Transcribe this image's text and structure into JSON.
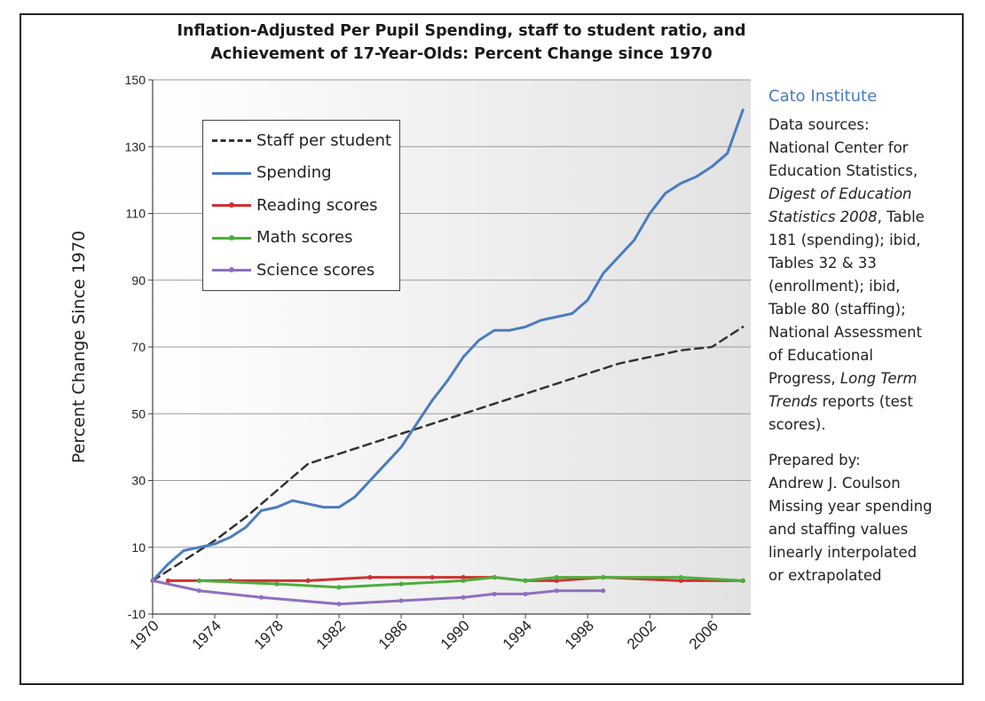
{
  "chart_data": {
    "type": "line",
    "title_lines": [
      "Inflation-Adjusted Per Pupil Spending, staff to student ratio, and",
      "Achievement of 17-Year-Olds:  Percent Change since 1970"
    ],
    "xlabel": "",
    "ylabel": "Percent Change Since 1970",
    "xlim": [
      1970,
      2008.5
    ],
    "ylim": [
      -10,
      150
    ],
    "y_ticks": [
      150,
      130,
      110,
      90,
      70,
      50,
      30,
      10,
      -10
    ],
    "x_ticks": [
      1970,
      1974,
      1978,
      1982,
      1986,
      1990,
      1994,
      1998,
      2002,
      2006
    ],
    "grid": "horizontal",
    "legend_position": "upper-left",
    "series": [
      {
        "name": "Staff per student",
        "color": "#333333",
        "style": "dashed",
        "x": [
          1970,
          1972,
          1974,
          1976,
          1978,
          1980,
          1982,
          1984,
          1986,
          1988,
          1990,
          1992,
          1994,
          1996,
          1998,
          2000,
          2002,
          2004,
          2006,
          2008
        ],
        "values": [
          0,
          6,
          12,
          19,
          27,
          35,
          38,
          41,
          44,
          47,
          50,
          53,
          56,
          59,
          62,
          65,
          67,
          69,
          70,
          76
        ]
      },
      {
        "name": "Spending",
        "color": "#4a7cc0",
        "style": "solid",
        "x": [
          1970,
          1971,
          1972,
          1973,
          1974,
          1975,
          1976,
          1977,
          1978,
          1979,
          1980,
          1981,
          1982,
          1983,
          1984,
          1985,
          1986,
          1987,
          1988,
          1989,
          1990,
          1991,
          1992,
          1993,
          1994,
          1995,
          1996,
          1997,
          1998,
          1999,
          2000,
          2001,
          2002,
          2003,
          2004,
          2005,
          2006,
          2007,
          2008
        ],
        "values": [
          0,
          5,
          9,
          10,
          11,
          13,
          16,
          21,
          22,
          24,
          23,
          22,
          22,
          25,
          30,
          35,
          40,
          47,
          54,
          60,
          67,
          72,
          75,
          75,
          76,
          78,
          79,
          80,
          84,
          92,
          97,
          102,
          110,
          116,
          119,
          121,
          124,
          128,
          141
        ]
      },
      {
        "name": "Reading scores",
        "color": "#d03030",
        "style": "solid",
        "x": [
          1971,
          1975,
          1980,
          1984,
          1988,
          1990,
          1992,
          1994,
          1996,
          1999,
          2004,
          2008
        ],
        "values": [
          0,
          0,
          0,
          1,
          1,
          1,
          1,
          0,
          0,
          1,
          0,
          0
        ]
      },
      {
        "name": "Math scores",
        "color": "#4caf3c",
        "style": "solid",
        "x": [
          1973,
          1978,
          1982,
          1986,
          1990,
          1992,
          1994,
          1996,
          1999,
          2004,
          2008
        ],
        "values": [
          0,
          -1,
          -2,
          -1,
          0,
          1,
          0,
          1,
          1,
          1,
          0
        ]
      },
      {
        "name": "Science scores",
        "color": "#8e6fc0",
        "style": "solid",
        "x": [
          1970,
          1973,
          1977,
          1982,
          1986,
          1990,
          1992,
          1994,
          1996,
          1999
        ],
        "values": [
          0,
          -3,
          -5,
          -7,
          -6,
          -5,
          -4,
          -4,
          -3,
          -3
        ]
      }
    ]
  },
  "sidebar": {
    "org": "Cato Institute",
    "sources_lines": [
      "Data sources:",
      "National Center for",
      "Education Statistics,",
      "Digest of Education",
      "Statistics 2008, Table",
      "181 (spending); ibid,",
      "Tables 32 & 33",
      "(enrollment); ibid,",
      "Table 80 (staffing);",
      "National Assessment",
      "of Educational",
      "Progress, Long Term",
      "Trends reports (test",
      "scores)."
    ],
    "prepared_lines": [
      "Prepared by:",
      "Andrew J. Coulson",
      "Missing year spending",
      "and staffing values",
      "linearly interpolated",
      "or extrapolated"
    ]
  }
}
